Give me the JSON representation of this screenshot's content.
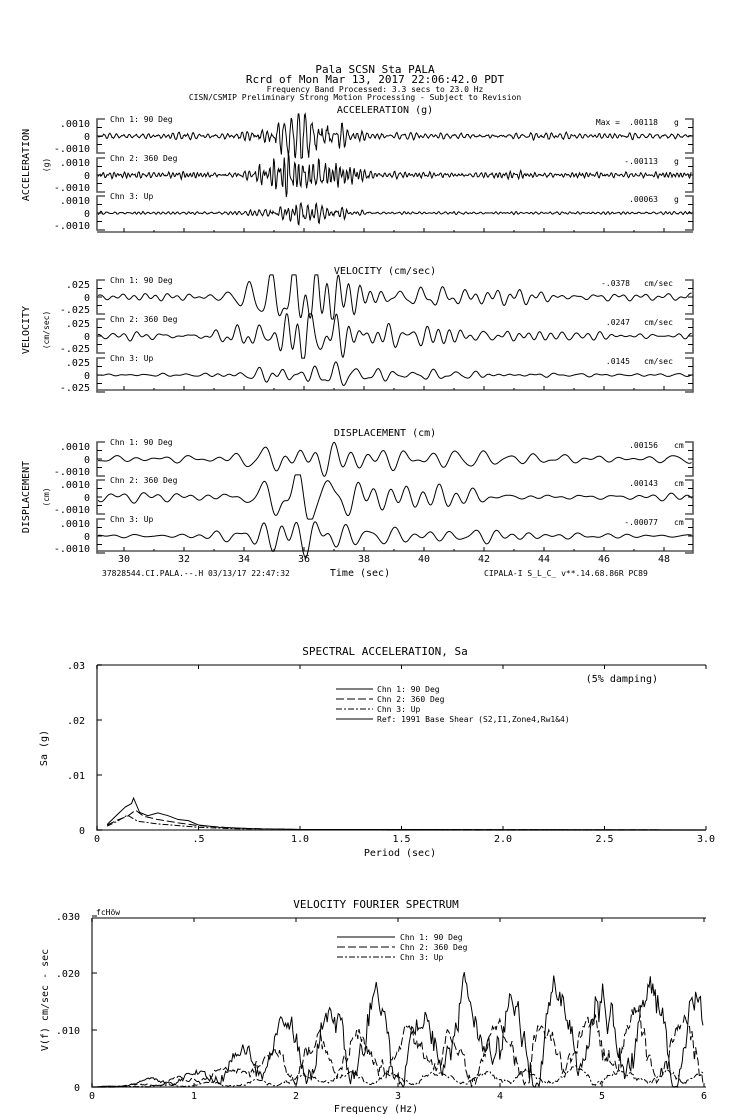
{
  "header": {
    "line1": "Pala    SCSN Sta PALA",
    "line2": "Rcrd of Mon Mar 13, 2017 22:06:42.0 PDT",
    "line3": "Frequency Band Processed: 3.3 secs to 23.0 Hz",
    "line4": "CISN/CSMIP Preliminary Strong Motion Processing - Subject to Revision"
  },
  "chart_data": [
    {
      "type": "line",
      "title": "ACCELERATION (g)",
      "ylabel": "ACCELERATION",
      "yunit": "(g)",
      "xlabel": "Time (sec)",
      "xlim": [
        29.1,
        49
      ],
      "x_ticks": [
        "30",
        "32",
        "34",
        "36",
        "38",
        "40",
        "42",
        "44",
        "46",
        "48"
      ],
      "y_ticks": [
        ".0010",
        "0",
        "-.0010"
      ],
      "ylim": [
        -0.001,
        0.001
      ],
      "max_prefix": "Max =",
      "channels": [
        {
          "name": "Chn 1: 90 Deg",
          "peak": ".00118",
          "unit": "g"
        },
        {
          "name": "Chn 2: 360 Deg",
          "peak": "-.00113",
          "unit": "g"
        },
        {
          "name": "Chn 3: Up",
          "peak": ".00063",
          "unit": "g"
        }
      ]
    },
    {
      "type": "line",
      "title": "VELOCITY (cm/sec)",
      "ylabel": "VELOCITY",
      "yunit": "(cm/sec)",
      "xlim": [
        29.1,
        49
      ],
      "y_ticks": [
        ".025",
        "0",
        "-.025"
      ],
      "ylim": [
        -0.025,
        0.025
      ],
      "channels": [
        {
          "name": "Chn 1: 90 Deg",
          "peak": "-.0378",
          "unit": "cm/sec"
        },
        {
          "name": "Chn 2: 360 Deg",
          "peak": ".0247",
          "unit": "cm/sec"
        },
        {
          "name": "Chn 3: Up",
          "peak": ".0145",
          "unit": "cm/sec"
        }
      ]
    },
    {
      "type": "line",
      "title": "DISPLACEMENT (cm)",
      "ylabel": "DISPLACEMENT",
      "yunit": "(cm)",
      "xlim": [
        29.1,
        49
      ],
      "y_ticks": [
        ".0010",
        "0",
        "-.0010"
      ],
      "ylim": [
        -0.001,
        0.001
      ],
      "channels": [
        {
          "name": "Chn 1: 90 Deg",
          "peak": ".00156",
          "unit": "cm"
        },
        {
          "name": "Chn 2: 360 Deg",
          "peak": ".00143",
          "unit": "cm"
        },
        {
          "name": "Chn 3: Up",
          "peak": "-.00077",
          "unit": "cm"
        }
      ]
    },
    {
      "type": "line",
      "title": "SPECTRAL ACCELERATION, Sa",
      "xlabel": "Period (sec)",
      "ylabel": "Sa (g)",
      "annotation": "(5% damping)",
      "xlim": [
        0,
        3
      ],
      "ylim": [
        0,
        0.03
      ],
      "x_ticks": [
        "0",
        ".5",
        "1.0",
        "1.5",
        "2.0",
        "2.5",
        "3.0"
      ],
      "y_ticks": [
        "0",
        ".01",
        ".02",
        ".03"
      ],
      "legend": [
        "Chn 1: 90 Deg",
        "Chn 2: 360 Deg",
        "Chn 3: Up",
        "Ref: 1991 Base Shear (S2,I1,Zone4,Rw1&4)"
      ],
      "series": [
        {
          "name": "Chn 1: 90 Deg",
          "style": "solid",
          "points": [
            [
              0.05,
              0.001
            ],
            [
              0.1,
              0.0028
            ],
            [
              0.14,
              0.0042
            ],
            [
              0.17,
              0.0048
            ],
            [
              0.18,
              0.0058
            ],
            [
              0.21,
              0.0032
            ],
            [
              0.25,
              0.0026
            ],
            [
              0.3,
              0.0031
            ],
            [
              0.35,
              0.0026
            ],
            [
              0.4,
              0.0019
            ],
            [
              0.45,
              0.0017
            ],
            [
              0.5,
              0.0009
            ],
            [
              0.6,
              0.0005
            ],
            [
              0.8,
              0.0002
            ],
            [
              1.0,
              0.0001
            ],
            [
              3.0,
              0.0
            ]
          ]
        },
        {
          "name": "Chn 2: 360 Deg",
          "style": "dash",
          "points": [
            [
              0.05,
              0.0009
            ],
            [
              0.1,
              0.0018
            ],
            [
              0.15,
              0.0025
            ],
            [
              0.19,
              0.0036
            ],
            [
              0.23,
              0.0025
            ],
            [
              0.3,
              0.0019
            ],
            [
              0.4,
              0.0013
            ],
            [
              0.5,
              0.0008
            ],
            [
              0.7,
              0.0003
            ],
            [
              1.0,
              0.0001
            ],
            [
              3.0,
              0.0
            ]
          ]
        },
        {
          "name": "Chn 3: Up",
          "style": "dashdot",
          "points": [
            [
              0.05,
              0.0007
            ],
            [
              0.1,
              0.0016
            ],
            [
              0.15,
              0.0027
            ],
            [
              0.2,
              0.0016
            ],
            [
              0.3,
              0.0011
            ],
            [
              0.4,
              0.0008
            ],
            [
              0.5,
              0.0005
            ],
            [
              0.7,
              0.0002
            ],
            [
              1.0,
              0.0001
            ],
            [
              3.0,
              0.0
            ]
          ]
        }
      ]
    },
    {
      "type": "line",
      "title": "VELOCITY FOURIER SPECTRUM",
      "corner_label": "fcHöw",
      "xlabel": "Frequency (Hz)",
      "ylabel": "V(f)   cm/sec - sec",
      "xlim": [
        0,
        6
      ],
      "ylim": [
        0,
        0.03
      ],
      "x_ticks": [
        "0",
        "1",
        "2",
        "3",
        "4",
        "5",
        "6"
      ],
      "y_ticks": [
        "0",
        ".010",
        ".020",
        ".030"
      ],
      "legend": [
        "Chn 1: 90 Deg",
        "Chn 2: 360 Deg",
        "Chn 3: Up"
      ]
    }
  ],
  "footer": {
    "left": "37828544.CI.PALA.--.H 03/13/17 22:47:32",
    "right": "CIPALA-I  S_L_C_  v**.14.68.86R PC89"
  }
}
